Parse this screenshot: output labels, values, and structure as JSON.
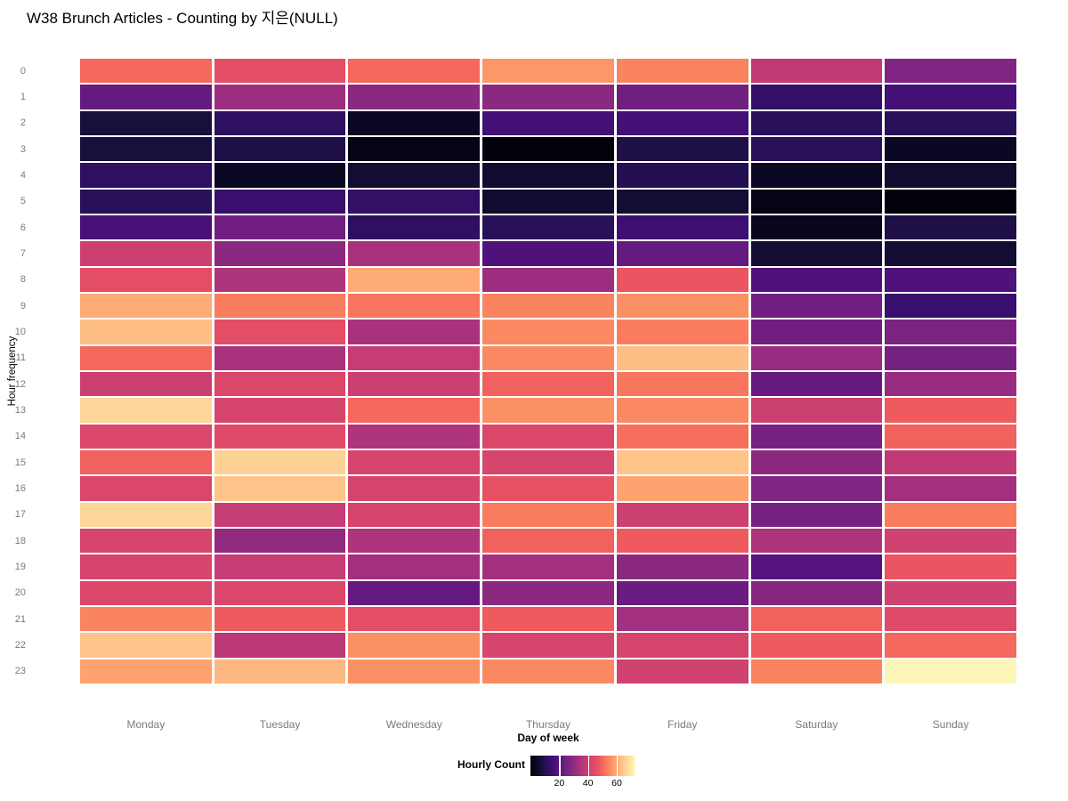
{
  "page": {
    "background": "#ffffff"
  },
  "chart_data": {
    "type": "heatmap",
    "title": "W38 Brunch Articles - Counting by 지은(NULL)",
    "xlabel": "Day of week",
    "ylabel": "Hour frequency",
    "x_categories": [
      "Monday",
      "Tuesday",
      "Wednesday",
      "Thursday",
      "Friday",
      "Saturday",
      "Sunday"
    ],
    "y_categories": [
      "0",
      "1",
      "2",
      "3",
      "4",
      "5",
      "6",
      "7",
      "8",
      "9",
      "10",
      "11",
      "12",
      "13",
      "14",
      "15",
      "16",
      "17",
      "18",
      "19",
      "20",
      "21",
      "22",
      "23"
    ],
    "legend": {
      "title": "Hourly Count",
      "ticks": [
        20,
        40,
        60
      ]
    },
    "colormap": "magma",
    "colormap_stops": [
      "#000004",
      "#0a0722",
      "#140e36",
      "#29115a",
      "#3b0f70",
      "#51127c",
      "#641a80",
      "#782281",
      "#8c2981",
      "#a2307e",
      "#b73779",
      "#cc4071",
      "#de4968",
      "#ed5660",
      "#f7705c",
      "#fb8861",
      "#fe9f6d",
      "#feb87f",
      "#fecf92",
      "#fce6a6",
      "#fcfdbf"
    ],
    "scale_domain": [
      0,
      73
    ],
    "values": [
      [
        50,
        45,
        50,
        57,
        54,
        38,
        27
      ],
      [
        22,
        32,
        29,
        29,
        24,
        13,
        16
      ],
      [
        8,
        12,
        4,
        16,
        16,
        11,
        11
      ],
      [
        8,
        9,
        2,
        1,
        9,
        11,
        4
      ],
      [
        12,
        4,
        7,
        6,
        10,
        4,
        6
      ],
      [
        11,
        14,
        13,
        6,
        7,
        2,
        1
      ],
      [
        17,
        24,
        12,
        11,
        15,
        3,
        9
      ],
      [
        40,
        29,
        34,
        18,
        22,
        7,
        7
      ],
      [
        45,
        35,
        60,
        32,
        47,
        18,
        18
      ],
      [
        60,
        53,
        52,
        54,
        56,
        24,
        14
      ],
      [
        63,
        45,
        34,
        55,
        53,
        24,
        26
      ],
      [
        50,
        34,
        39,
        55,
        63,
        31,
        25
      ],
      [
        40,
        43,
        40,
        49,
        52,
        22,
        31
      ],
      [
        67,
        42,
        50,
        56,
        55,
        40,
        48
      ],
      [
        43,
        44,
        35,
        43,
        51,
        25,
        49
      ],
      [
        49,
        66,
        42,
        42,
        64,
        29,
        38
      ],
      [
        43,
        64,
        42,
        46,
        59,
        27,
        33
      ],
      [
        67,
        39,
        42,
        53,
        40,
        25,
        53
      ],
      [
        42,
        30,
        35,
        49,
        48,
        35,
        41
      ],
      [
        42,
        39,
        33,
        33,
        29,
        19,
        47
      ],
      [
        43,
        43,
        22,
        29,
        23,
        28,
        41
      ],
      [
        54,
        48,
        45,
        48,
        33,
        49,
        44
      ],
      [
        64,
        37,
        56,
        42,
        42,
        48,
        50
      ],
      [
        59,
        62,
        56,
        55,
        41,
        54,
        72
      ]
    ]
  }
}
